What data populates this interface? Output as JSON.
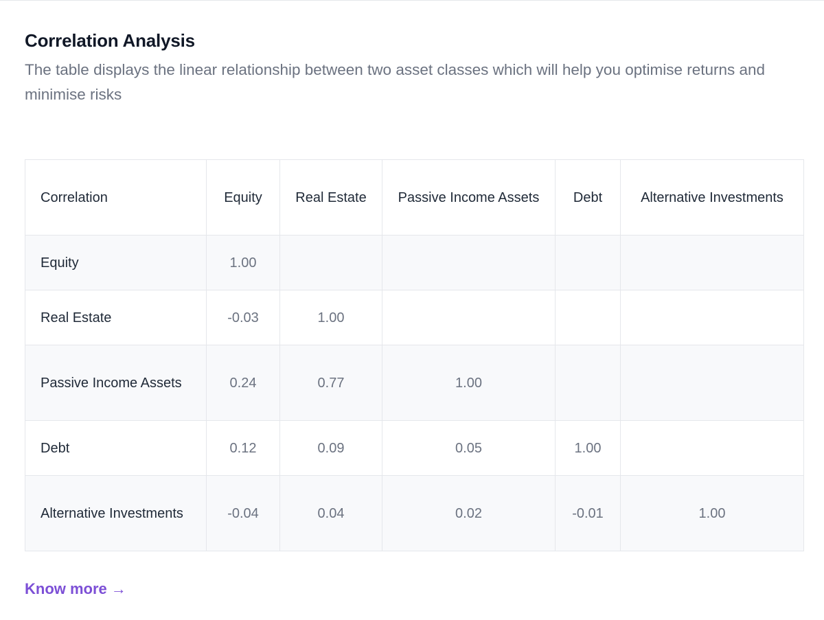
{
  "header": {
    "title": "Correlation Analysis",
    "subtitle": "The table displays the linear relationship between two asset classes which will help you optimise returns and minimise risks"
  },
  "table": {
    "columns": [
      "Correlation",
      "Equity",
      "Real Estate",
      "Passive Income Assets",
      "Debt",
      "Alternative Investments"
    ],
    "rows": [
      {
        "label": "Equity",
        "values": [
          "1.00",
          "",
          "",
          "",
          ""
        ]
      },
      {
        "label": "Real Estate",
        "values": [
          "-0.03",
          "1.00",
          "",
          "",
          ""
        ]
      },
      {
        "label": "Passive Income Assets",
        "values": [
          "0.24",
          "0.77",
          "1.00",
          "",
          ""
        ]
      },
      {
        "label": "Debt",
        "values": [
          "0.12",
          "0.09",
          "0.05",
          "1.00",
          ""
        ]
      },
      {
        "label": "Alternative Investments",
        "values": [
          "-0.04",
          "0.04",
          "0.02",
          "-0.01",
          "1.00"
        ]
      }
    ]
  },
  "footer": {
    "link_label": "Know more",
    "link_arrow": "→"
  },
  "colors": {
    "accent": "#7c4fd6",
    "title": "#111827",
    "muted_text": "#6b7280",
    "border": "#e5e7eb",
    "row_stripe": "#f8f9fb"
  }
}
